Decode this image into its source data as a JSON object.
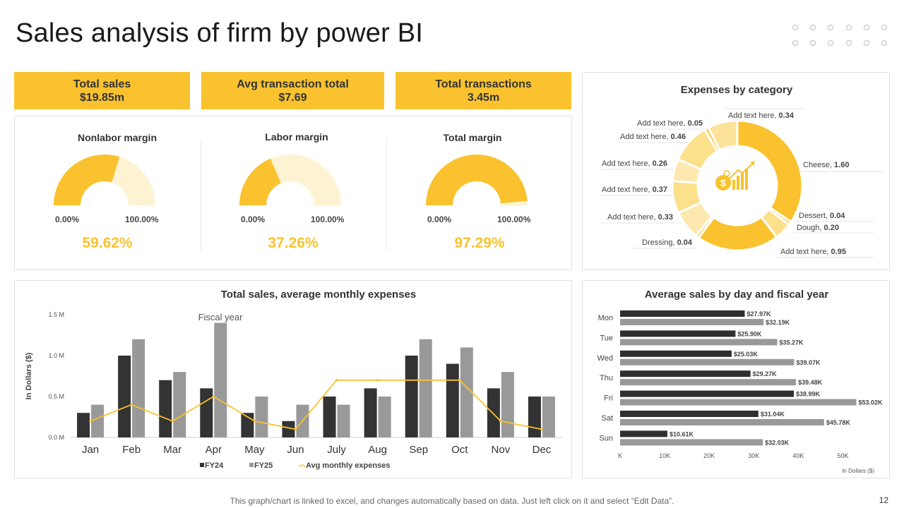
{
  "title": "Sales analysis of firm by power BI",
  "kpis": [
    {
      "label": "Total sales",
      "value": "$19.85m"
    },
    {
      "label": "Avg transaction total",
      "value": "$7.69"
    },
    {
      "label": "Total transactions",
      "value": "3.45m"
    }
  ],
  "gauges": [
    {
      "title": "Nonlabor margin",
      "min": "0.00%",
      "max": "100.00%",
      "value": "59.62%",
      "fraction": 0.5962
    },
    {
      "title": "Labor margin",
      "min": "0.00%",
      "max": "100.00%",
      "value": "37.26%",
      "fraction": 0.3726
    },
    {
      "title": "Total margin",
      "min": "0.00%",
      "max": "100.00%",
      "value": "97.29%",
      "fraction": 0.9729
    }
  ],
  "colors": {
    "accent": "#F9C22E",
    "dark": "#333333",
    "grey": "#999999",
    "light": "#FDF3D2"
  },
  "icons": {
    "center": "money-growth-icon"
  },
  "chart_data": [
    {
      "type": "pie",
      "title": "Expenses by category",
      "slices": [
        {
          "label": "Cheese",
          "value": 1.6
        },
        {
          "label": "Dessert",
          "value": 0.04
        },
        {
          "label": "Dough",
          "value": 0.2
        },
        {
          "label": "Add text here",
          "value": 0.95
        },
        {
          "label": "Dressing",
          "value": 0.04
        },
        {
          "label": "Add text here",
          "value": 0.33
        },
        {
          "label": "Add text here",
          "value": 0.37
        },
        {
          "label": "Add text here",
          "value": 0.26
        },
        {
          "label": "Add text here",
          "value": 0.46
        },
        {
          "label": "Add text here",
          "value": 0.05
        },
        {
          "label": "Add text here",
          "value": 0.34
        }
      ]
    },
    {
      "type": "bar",
      "title": "Total sales, average monthly expenses",
      "annotation": "Fiscal year",
      "ylabel": "In Dollars ($)",
      "ylim": [
        0,
        1.5
      ],
      "yticks": [
        "0.0 M",
        "0.5 M",
        "1.0 M",
        "1.5 M"
      ],
      "categories": [
        "Jan",
        "Feb",
        "Mar",
        "Apr",
        "May",
        "Jun",
        "July",
        "Aug",
        "Sep",
        "Oct",
        "Nov",
        "Dec"
      ],
      "series": [
        {
          "name": "FY24",
          "kind": "bar",
          "values": [
            0.3,
            1.0,
            0.7,
            0.6,
            0.3,
            0.2,
            0.5,
            0.6,
            1.0,
            0.9,
            0.6,
            0.5
          ]
        },
        {
          "name": "FY25",
          "kind": "bar",
          "values": [
            0.4,
            1.2,
            0.8,
            1.4,
            0.5,
            0.4,
            0.4,
            0.5,
            1.2,
            1.1,
            0.8,
            0.5
          ]
        },
        {
          "name": "Avg monthly expenses",
          "kind": "line",
          "values": [
            0.2,
            0.4,
            0.2,
            0.5,
            0.2,
            0.1,
            0.7,
            0.7,
            0.7,
            0.7,
            0.2,
            0.1
          ]
        }
      ],
      "legend": [
        "FY24",
        "FY25",
        "Avg monthly expenses"
      ]
    },
    {
      "type": "bar",
      "orientation": "horizontal",
      "title": "Average sales by day and fiscal year",
      "xlabel": "In Dollars ($)",
      "xlim": [
        0,
        55
      ],
      "xticks": [
        "K",
        "10K",
        "20K",
        "30K",
        "40K",
        "50K"
      ],
      "categories": [
        "Mon",
        "Tue",
        "Wed",
        "Thu",
        "Fri",
        "Sat",
        "Sun"
      ],
      "series": [
        {
          "name": "FY24",
          "values": [
            27.97,
            25.9,
            25.03,
            29.27,
            38.99,
            31.04,
            10.61
          ],
          "labels": [
            "$27.97K",
            "$25.90K",
            "$25.03K",
            "$29.27K",
            "$38.99K",
            "$31.04K",
            "$10.61K"
          ]
        },
        {
          "name": "FY25",
          "values": [
            32.19,
            35.27,
            39.07,
            39.48,
            53.02,
            45.78,
            32.03
          ],
          "labels": [
            "$32.19K",
            "$35.27K",
            "$39.07K",
            "$39.48K",
            "$53.02K",
            "$45.78K",
            "$32.03K"
          ]
        }
      ]
    }
  ],
  "footer": "This graph/chart is linked to excel, and changes automatically based on data. Just left click on it and select “Edit Data”.",
  "page_number": "12"
}
